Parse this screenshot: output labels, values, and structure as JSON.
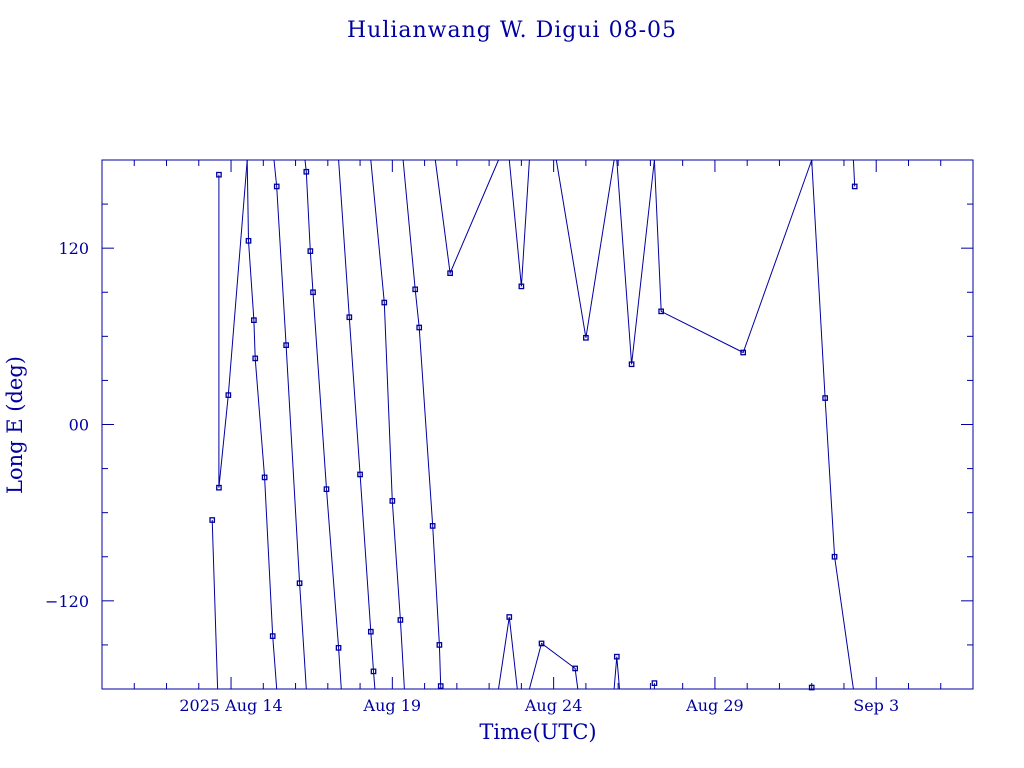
{
  "chart_data": {
    "type": "scatter",
    "title": "Hulianwang W. Digui 08-05",
    "xlabel": "Time(UTC)",
    "ylabel": "Long E (deg)",
    "ylim": [
      -180,
      180
    ],
    "xlim": [
      "2025-08-10T00:00",
      "2025-09-06T00:00"
    ],
    "x_tick_labels": [
      {
        "label": "2025 Aug 14",
        "date": "2025-08-14T00:00"
      },
      {
        "label": "Aug 19",
        "date": "2025-08-19T00:00"
      },
      {
        "label": "Aug 24",
        "date": "2025-08-24T00:00"
      },
      {
        "label": "Aug 29",
        "date": "2025-08-29T00:00"
      },
      {
        "label": "Sep 3",
        "date": "2025-09-03T00:00"
      }
    ],
    "y_tick_labels": [
      {
        "label": "120",
        "value": 120
      },
      {
        "label": "00",
        "value": 0
      },
      {
        "label": "−120",
        "value": -120
      }
    ],
    "grid": false,
    "legend": "none",
    "color": "#0000a0",
    "points": [
      {
        "x": "2025-08-13T10:00",
        "y": -65
      },
      {
        "x": "2025-08-13T15:00",
        "y": 170
      },
      {
        "x": "2025-08-13T15:00",
        "y": -43
      },
      {
        "x": "2025-08-13T22:00",
        "y": 20
      },
      {
        "x": "2025-08-14T13:00",
        "y": 125
      },
      {
        "x": "2025-08-14T17:00",
        "y": 71
      },
      {
        "x": "2025-08-14T18:00",
        "y": 45
      },
      {
        "x": "2025-08-15T01:00",
        "y": -36
      },
      {
        "x": "2025-08-15T07:00",
        "y": -144
      },
      {
        "x": "2025-08-15T10:00",
        "y": 162
      },
      {
        "x": "2025-08-15T17:00",
        "y": 54
      },
      {
        "x": "2025-08-16T03:00",
        "y": -108
      },
      {
        "x": "2025-08-16T08:00",
        "y": 172
      },
      {
        "x": "2025-08-16T11:00",
        "y": 118
      },
      {
        "x": "2025-08-16T13:00",
        "y": 90
      },
      {
        "x": "2025-08-16T23:00",
        "y": -44
      },
      {
        "x": "2025-08-17T08:00",
        "y": -152
      },
      {
        "x": "2025-08-17T16:00",
        "y": 73
      },
      {
        "x": "2025-08-18T00:00",
        "y": -34
      },
      {
        "x": "2025-08-18T08:00",
        "y": -141
      },
      {
        "x": "2025-08-18T10:00",
        "y": -168
      },
      {
        "x": "2025-08-18T18:00",
        "y": 83
      },
      {
        "x": "2025-08-19T00:00",
        "y": -52
      },
      {
        "x": "2025-08-19T06:00",
        "y": -133
      },
      {
        "x": "2025-08-19T17:00",
        "y": 92
      },
      {
        "x": "2025-08-19T20:00",
        "y": 66
      },
      {
        "x": "2025-08-20T06:00",
        "y": -69
      },
      {
        "x": "2025-08-20T11:00",
        "y": -150
      },
      {
        "x": "2025-08-20T12:00",
        "y": -178
      },
      {
        "x": "2025-08-20T19:00",
        "y": 103
      },
      {
        "x": "2025-08-22T15:00",
        "y": -131
      },
      {
        "x": "2025-08-23T00:00",
        "y": 94
      },
      {
        "x": "2025-08-23T15:00",
        "y": -149
      },
      {
        "x": "2025-08-24T16:00",
        "y": -166
      },
      {
        "x": "2025-08-25T00:00",
        "y": 59
      },
      {
        "x": "2025-08-25T23:00",
        "y": -158
      },
      {
        "x": "2025-08-26T10:00",
        "y": 41
      },
      {
        "x": "2025-08-27T03:00",
        "y": -176
      },
      {
        "x": "2025-08-27T08:00",
        "y": 77
      },
      {
        "x": "2025-08-29T21:00",
        "y": 49
      },
      {
        "x": "2025-09-01T00:00",
        "y": -179
      },
      {
        "x": "2025-09-01T10:00",
        "y": 18
      },
      {
        "x": "2025-09-01T17:00",
        "y": -90
      },
      {
        "x": "2025-09-02T08:00",
        "y": 162
      }
    ],
    "track_segments": [
      [
        [
          "2025-08-13T10:00",
          -65
        ],
        [
          "2025-08-13T14:00",
          -180
        ]
      ],
      [
        [
          "2025-08-13T15:00",
          170
        ],
        [
          "2025-08-13T15:00",
          -43
        ],
        [
          "2025-08-13T22:00",
          20
        ],
        [
          "2025-08-14T12:00",
          180
        ]
      ],
      [
        [
          "2025-08-14T12:00",
          180
        ],
        [
          "2025-08-14T13:00",
          125
        ],
        [
          "2025-08-14T17:00",
          71
        ],
        [
          "2025-08-14T18:00",
          45
        ],
        [
          "2025-08-15T01:00",
          -36
        ],
        [
          "2025-08-15T07:00",
          -144
        ],
        [
          "2025-08-15T10:00",
          -180
        ]
      ],
      [
        [
          "2025-08-15T08:00",
          180
        ],
        [
          "2025-08-15T10:00",
          162
        ],
        [
          "2025-08-15T17:00",
          54
        ],
        [
          "2025-08-16T03:00",
          -108
        ],
        [
          "2025-08-16T08:00",
          -180
        ]
      ],
      [
        [
          "2025-08-16T07:00",
          180
        ],
        [
          "2025-08-16T08:00",
          172
        ],
        [
          "2025-08-16T11:00",
          118
        ],
        [
          "2025-08-16T13:00",
          90
        ],
        [
          "2025-08-16T23:00",
          -44
        ],
        [
          "2025-08-17T08:00",
          -152
        ],
        [
          "2025-08-17T10:00",
          -180
        ]
      ],
      [
        [
          "2025-08-17T08:00",
          180
        ],
        [
          "2025-08-17T16:00",
          73
        ],
        [
          "2025-08-18T00:00",
          -34
        ],
        [
          "2025-08-18T08:00",
          -141
        ],
        [
          "2025-08-18T10:00",
          -168
        ],
        [
          "2025-08-18T11:00",
          -180
        ]
      ],
      [
        [
          "2025-08-18T08:00",
          180
        ],
        [
          "2025-08-18T18:00",
          83
        ],
        [
          "2025-08-19T00:00",
          -52
        ],
        [
          "2025-08-19T06:00",
          -133
        ],
        [
          "2025-08-19T09:00",
          -180
        ]
      ],
      [
        [
          "2025-08-19T08:00",
          180
        ],
        [
          "2025-08-19T17:00",
          92
        ],
        [
          "2025-08-19T20:00",
          66
        ],
        [
          "2025-08-20T06:00",
          -69
        ],
        [
          "2025-08-20T11:00",
          -150
        ],
        [
          "2025-08-20T12:00",
          -178
        ],
        [
          "2025-08-20T12:00",
          -180
        ]
      ],
      [
        [
          "2025-08-20T08:00",
          180
        ],
        [
          "2025-08-20T19:00",
          103
        ],
        [
          "2025-08-22T07:00",
          180
        ]
      ],
      [
        [
          "2025-08-22T07:00",
          -180
        ],
        [
          "2025-08-22T15:00",
          -131
        ],
        [
          "2025-08-22T21:00",
          -180
        ]
      ],
      [
        [
          "2025-08-22T15:00",
          180
        ],
        [
          "2025-08-23T00:00",
          94
        ],
        [
          "2025-08-23T06:00",
          180
        ]
      ],
      [
        [
          "2025-08-23T06:00",
          -180
        ],
        [
          "2025-08-23T15:00",
          -149
        ],
        [
          "2025-08-24T16:00",
          -166
        ],
        [
          "2025-08-24T18:00",
          -180
        ]
      ],
      [
        [
          "2025-08-24T02:00",
          180
        ],
        [
          "2025-08-25T00:00",
          59
        ],
        [
          "2025-08-25T21:00",
          180
        ]
      ],
      [
        [
          "2025-08-25T21:00",
          -180
        ],
        [
          "2025-08-25T23:00",
          -158
        ],
        [
          "2025-08-26T01:00",
          -180
        ]
      ],
      [
        [
          "2025-08-25T23:00",
          180
        ],
        [
          "2025-08-26T10:00",
          41
        ],
        [
          "2025-08-27T03:00",
          180
        ]
      ],
      [
        [
          "2025-08-27T03:00",
          -176
        ],
        [
          "2025-08-27T03:00",
          -180
        ]
      ],
      [
        [
          "2025-08-27T03:00",
          180
        ],
        [
          "2025-08-27T08:00",
          77
        ],
        [
          "2025-08-29T21:00",
          49
        ],
        [
          "2025-09-01T00:00",
          180
        ]
      ],
      [
        [
          "2025-09-01T00:00",
          180
        ],
        [
          "2025-09-01T10:00",
          18
        ],
        [
          "2025-09-01T17:00",
          -90
        ],
        [
          "2025-09-02T07:00",
          -180
        ]
      ],
      [
        [
          "2025-09-02T07:00",
          180
        ],
        [
          "2025-09-02T08:00",
          162
        ]
      ]
    ]
  }
}
